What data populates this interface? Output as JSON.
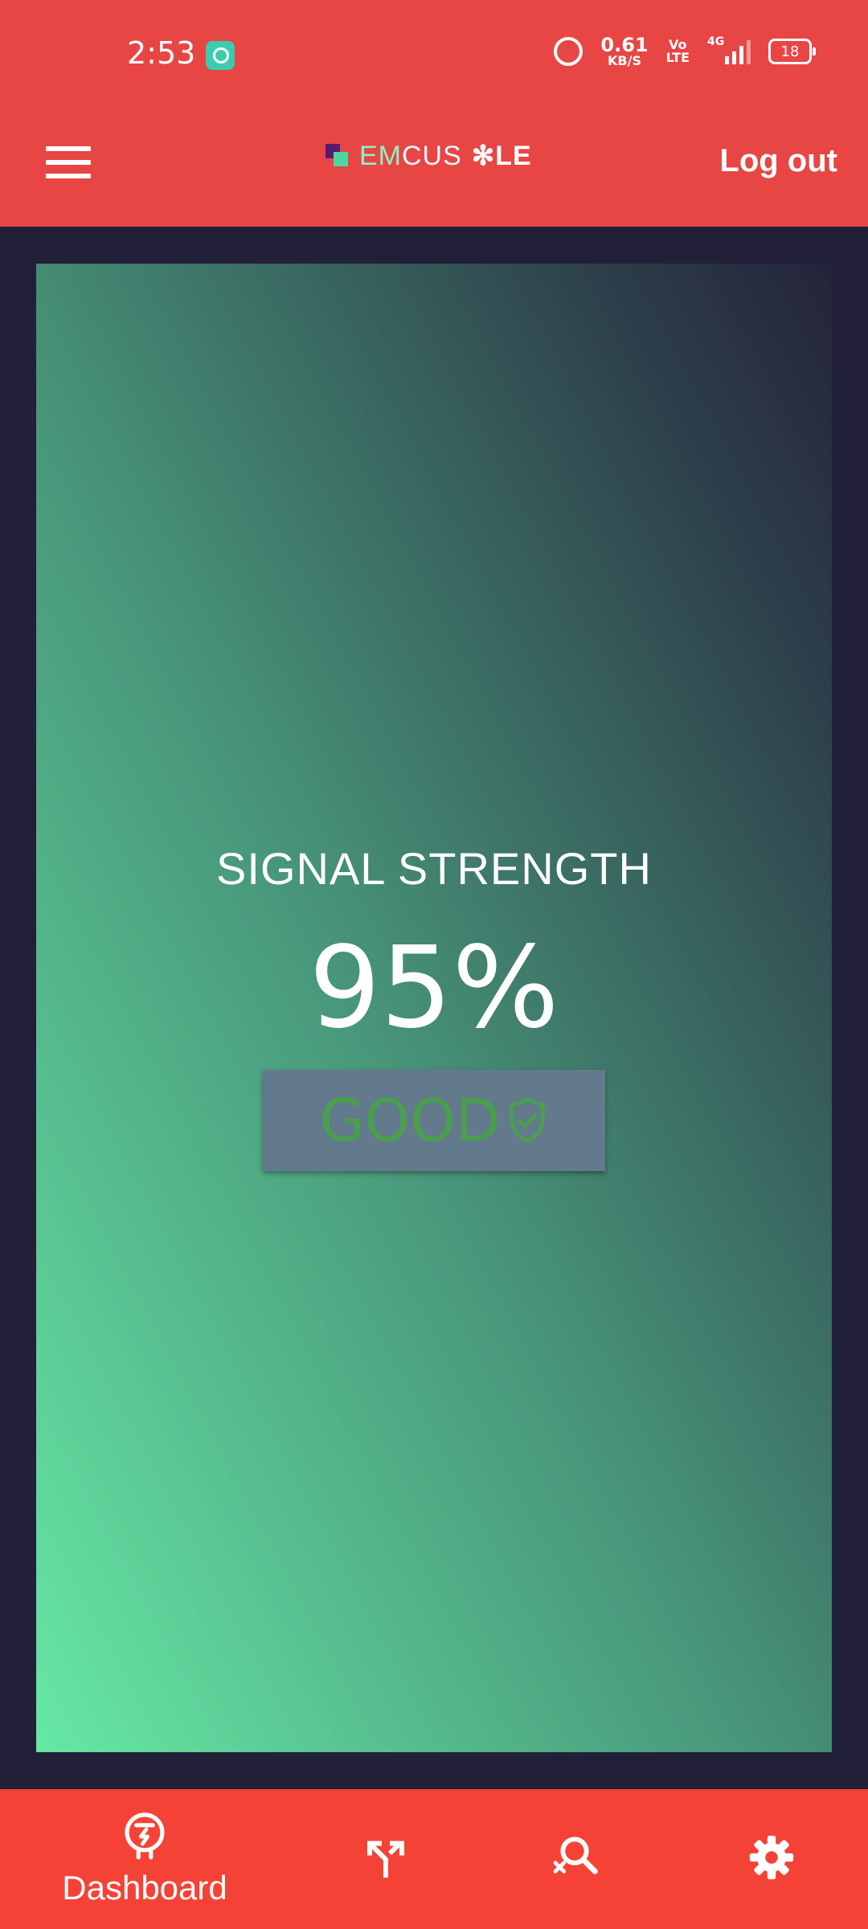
{
  "status_bar": {
    "time": "2:53",
    "speed_value": "0.61",
    "speed_unit": "KB/S",
    "volte_top": "Vo",
    "volte_bottom": "LTE",
    "network": "4G",
    "battery": "18"
  },
  "app_bar": {
    "logo_em": "EM",
    "logo_cus": "CUS",
    "logo_ble": "✻LE",
    "logout_label": "Log out"
  },
  "signal": {
    "title": "SIGNAL STRENGTH",
    "value_text": "95%",
    "value": 95,
    "quality_label": "GOOD"
  },
  "bottom_nav": {
    "items": [
      {
        "label": "Dashboard",
        "icon": "dashboard-icon"
      },
      {
        "icon": "call-split-icon"
      },
      {
        "icon": "search-off-icon"
      },
      {
        "icon": "settings-gear-icon"
      }
    ]
  },
  "colors": {
    "header": "#e84545",
    "bottom_nav": "#f44336",
    "background": "#212038",
    "good": "#4a9f4c",
    "badge": "#637a8c"
  }
}
